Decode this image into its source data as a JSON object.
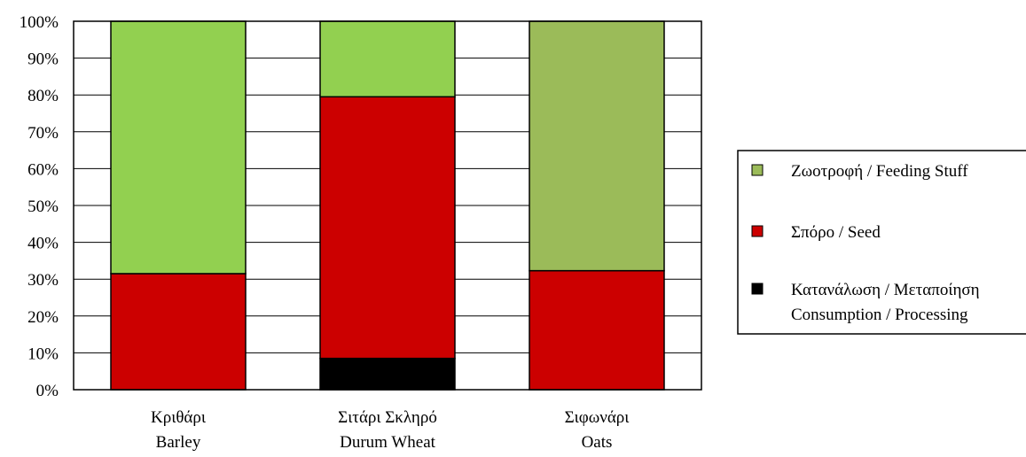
{
  "chart_data": {
    "type": "bar",
    "stacked": true,
    "percent_axis": true,
    "categories": [
      [
        "Κριθάρι",
        "Barley"
      ],
      [
        "Σιτάρι Σκληρό",
        "Durum Wheat"
      ],
      [
        "Σιφωνάρι",
        "Oats"
      ]
    ],
    "series": [
      {
        "name": [
          "Κατανάλωση / Μεταποίηση",
          "Consumption / Processing"
        ],
        "color": "#000000",
        "values": [
          0,
          8.5,
          0
        ]
      },
      {
        "name": [
          "Σπόρο / Seed"
        ],
        "color": "#cc0000",
        "values": [
          31.5,
          71,
          32.3
        ]
      },
      {
        "name": [
          "Ζωοτροφή / Feeding Stuff"
        ],
        "color": "#92d050",
        "values": [
          68.5,
          20.5,
          67.7
        ]
      }
    ],
    "bar_colors_override": {
      "2": [
        "#000000",
        "#cc0000",
        "#9bbb59"
      ]
    },
    "legend_order": [
      2,
      1,
      0
    ],
    "legend_swatch_colors": [
      "#9bbb59",
      "#cc0000",
      "#000000"
    ],
    "yticks": [
      "0%",
      "10%",
      "20%",
      "30%",
      "40%",
      "50%",
      "60%",
      "70%",
      "80%",
      "90%",
      "100%"
    ],
    "ylim": [
      0,
      100
    ],
    "grid": true,
    "legend_position": "right"
  }
}
